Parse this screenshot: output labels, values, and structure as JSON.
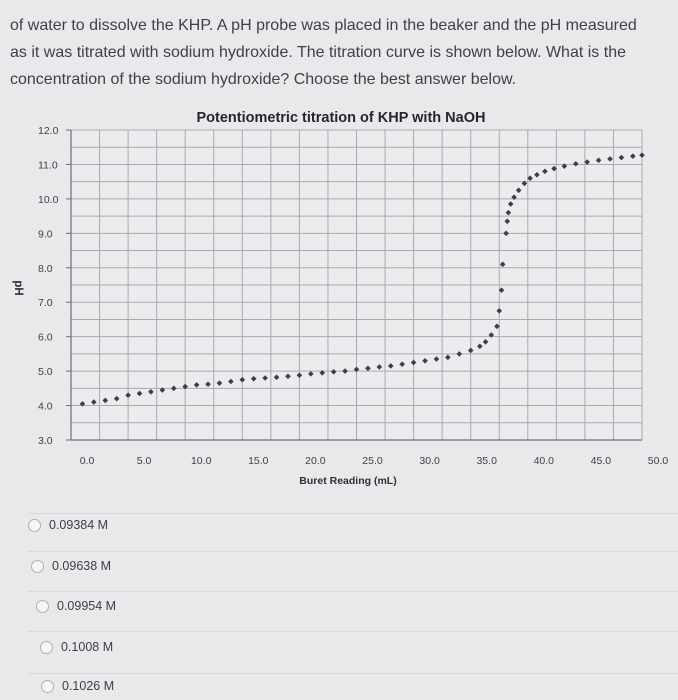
{
  "question": {
    "line1": "of water to dissolve the KHP. A pH probe was placed in the beaker and the pH measured",
    "line2": "as it was titrated with sodium hydroxide. The titration curve is shown below. What is the",
    "line3": "concentration of the sodium hydroxide? Choose the best answer below."
  },
  "chart_data": {
    "type": "scatter",
    "title": "Potentiometric titration of KHP with NaOH",
    "xlabel": "Buret Reading (mL)",
    "ylabel": "pH",
    "xlim": [
      0,
      50
    ],
    "ylim": [
      3,
      12
    ],
    "x_ticks": [
      "0.0",
      "5.0",
      "10.0",
      "15.0",
      "20.0",
      "25.0",
      "30.0",
      "35.0",
      "40.0",
      "45.0",
      "50.0"
    ],
    "y_ticks": [
      "12.0",
      "11.0",
      "10.0",
      "9.0",
      "8.0",
      "7.0",
      "6.0",
      "5.0",
      "4.0",
      "3.0"
    ],
    "grid": true,
    "marker_color": "#3a3f4a",
    "series": [
      {
        "points": [
          [
            1.0,
            4.05
          ],
          [
            2.0,
            4.1
          ],
          [
            3.0,
            4.15
          ],
          [
            4.0,
            4.2
          ],
          [
            5.0,
            4.3
          ],
          [
            6.0,
            4.35
          ],
          [
            7.0,
            4.4
          ],
          [
            8.0,
            4.45
          ],
          [
            9.0,
            4.5
          ],
          [
            10.0,
            4.55
          ],
          [
            11.0,
            4.6
          ],
          [
            12.0,
            4.62
          ],
          [
            13.0,
            4.65
          ],
          [
            14.0,
            4.7
          ],
          [
            15.0,
            4.75
          ],
          [
            16.0,
            4.78
          ],
          [
            17.0,
            4.8
          ],
          [
            18.0,
            4.82
          ],
          [
            19.0,
            4.85
          ],
          [
            20.0,
            4.88
          ],
          [
            21.0,
            4.92
          ],
          [
            22.0,
            4.95
          ],
          [
            23.0,
            4.98
          ],
          [
            24.0,
            5.0
          ],
          [
            25.0,
            5.05
          ],
          [
            26.0,
            5.08
          ],
          [
            27.0,
            5.12
          ],
          [
            28.0,
            5.15
          ],
          [
            29.0,
            5.2
          ],
          [
            30.0,
            5.25
          ],
          [
            31.0,
            5.3
          ],
          [
            32.0,
            5.35
          ],
          [
            33.0,
            5.4
          ],
          [
            34.0,
            5.5
          ],
          [
            35.0,
            5.6
          ],
          [
            35.8,
            5.72
          ],
          [
            36.3,
            5.85
          ],
          [
            36.8,
            6.05
          ],
          [
            37.3,
            6.3
          ],
          [
            37.5,
            6.75
          ],
          [
            37.7,
            7.35
          ],
          [
            37.8,
            8.1
          ],
          [
            38.1,
            9.0
          ],
          [
            38.2,
            9.35
          ],
          [
            38.3,
            9.6
          ],
          [
            38.5,
            9.85
          ],
          [
            38.8,
            10.05
          ],
          [
            39.2,
            10.25
          ],
          [
            39.7,
            10.45
          ],
          [
            40.2,
            10.6
          ],
          [
            40.8,
            10.7
          ],
          [
            41.5,
            10.8
          ],
          [
            42.3,
            10.88
          ],
          [
            43.2,
            10.95
          ],
          [
            44.2,
            11.02
          ],
          [
            45.2,
            11.07
          ],
          [
            46.2,
            11.12
          ],
          [
            47.2,
            11.16
          ],
          [
            48.2,
            11.2
          ],
          [
            49.2,
            11.24
          ],
          [
            50.0,
            11.27
          ]
        ]
      }
    ]
  },
  "options": [
    {
      "label": "0.09384 M"
    },
    {
      "label": "0.09638 M"
    },
    {
      "label": "0.09954 M"
    },
    {
      "label": "0.1008 M"
    },
    {
      "label": "0.1026 M"
    }
  ]
}
